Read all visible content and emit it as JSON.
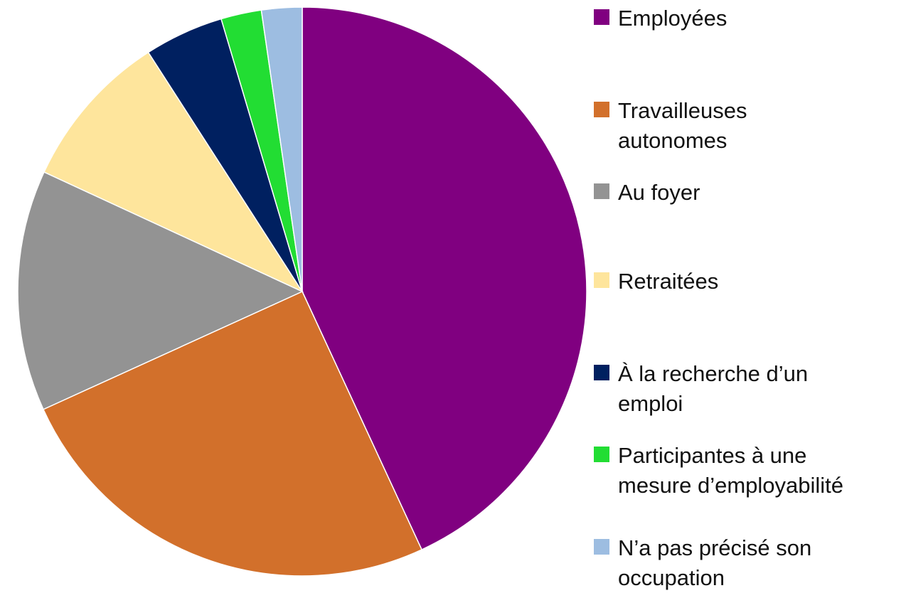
{
  "chart_data": {
    "type": "pie",
    "categories": [
      "Employées",
      "Travailleuses autonomes",
      "Au foyer",
      "Retraitées",
      "À la recherche d’un emploi",
      "Participantes à une mesure d’employabilité",
      "N’a pas précisé son occupation"
    ],
    "values": [
      43.1,
      25.1,
      13.7,
      9.0,
      4.5,
      2.3,
      2.3
    ],
    "colors": [
      "#800080",
      "#d2702b",
      "#939393",
      "#fee59c",
      "#002060",
      "#22dd33",
      "#9dbde1"
    ]
  }
}
